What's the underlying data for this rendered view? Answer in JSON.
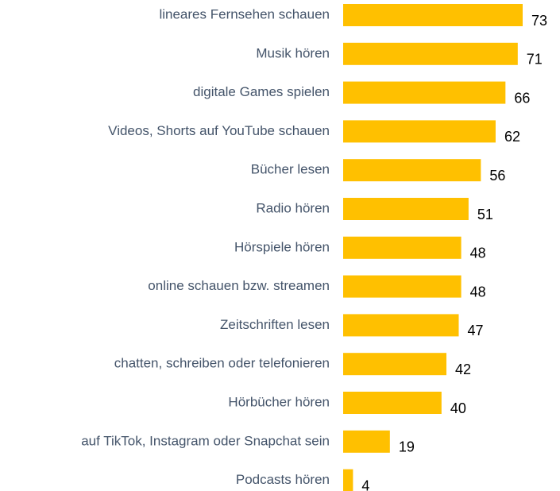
{
  "chart_data": {
    "type": "bar",
    "orientation": "horizontal",
    "categories": [
      "lineares Fernsehen schauen",
      "Musik hören",
      "digitale Games spielen",
      "Videos, Shorts auf YouTube schauen",
      "Bücher lesen",
      "Radio hören",
      "Hörspiele hören",
      "online schauen bzw. streamen",
      "Zeitschriften lesen",
      "chatten, schreiben oder telefonieren",
      "Hörbücher hören",
      "auf TikTok, Instagram oder Snapchat sein",
      "Podcasts hören"
    ],
    "values": [
      73,
      71,
      66,
      62,
      56,
      51,
      48,
      48,
      47,
      42,
      40,
      19,
      4
    ],
    "color": "#ffc000"
  }
}
